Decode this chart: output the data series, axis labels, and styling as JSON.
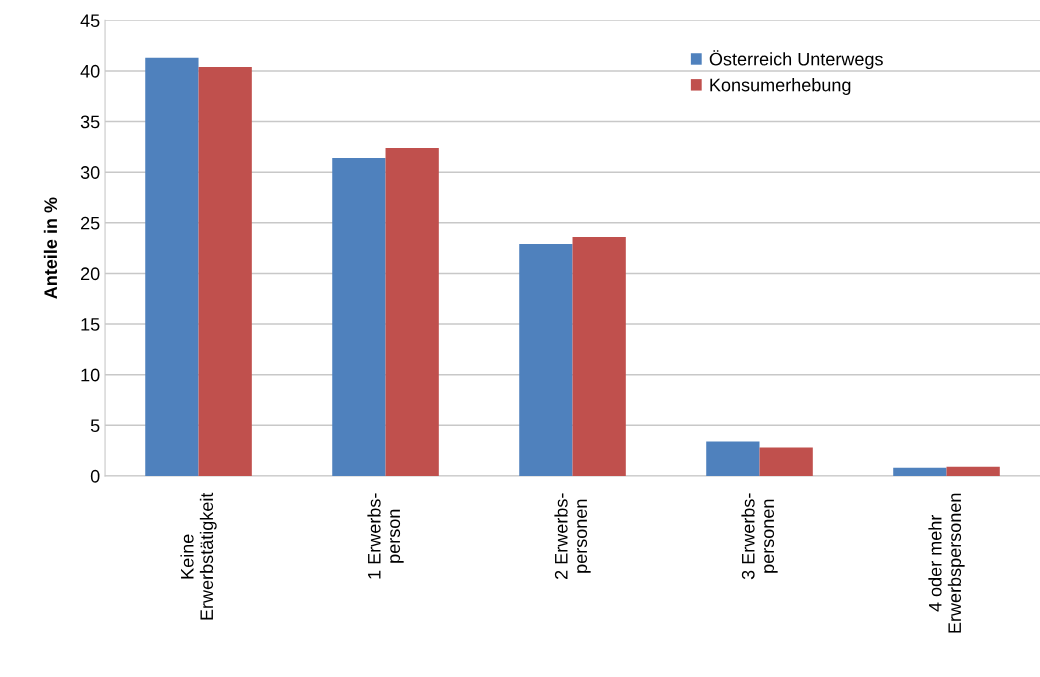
{
  "chart_data": {
    "type": "bar",
    "ylabel": "Anteile in %",
    "categories": [
      "Keine\nErwerbstätigkeit",
      "1 Erwerbs-\nperson",
      "2 Erwerbs-\npersonen",
      "3 Erwerbs-\npersonen",
      "4 oder mehr\nErwerbspersonen"
    ],
    "series": [
      {
        "name": "Österreich Unterwegs",
        "color": "#4f81bd",
        "values": [
          41.3,
          31.4,
          22.9,
          3.4,
          0.8
        ]
      },
      {
        "name": "Konsumerhebung",
        "color": "#c0504d",
        "values": [
          40.4,
          32.4,
          23.6,
          2.8,
          0.9
        ]
      }
    ],
    "ylim": [
      0,
      45
    ],
    "yticks": [
      0,
      5,
      10,
      15,
      20,
      25,
      30,
      35,
      40,
      45
    ],
    "grid": "y",
    "legend": "top right"
  }
}
